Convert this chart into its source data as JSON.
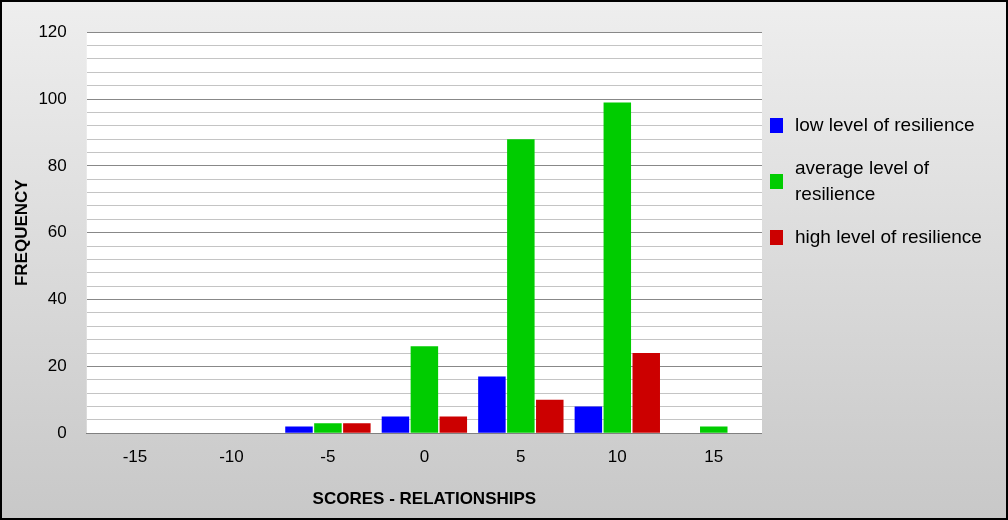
{
  "chart_data": {
    "type": "bar",
    "xlabel": "SCORES - RELATIONSHIPS",
    "ylabel": "FREQUENCY",
    "categories": [
      "-15",
      "-10",
      "-5",
      "0",
      "5",
      "10",
      "15"
    ],
    "series": [
      {
        "name": "low level of resilience",
        "color": "#0000ff",
        "values": [
          null,
          null,
          2,
          5,
          17,
          8,
          null
        ]
      },
      {
        "name": "average level of resilience",
        "color": "#00cc00",
        "values": [
          null,
          null,
          3,
          26,
          88,
          99,
          2
        ]
      },
      {
        "name": "high level of resilience",
        "color": "#cc0000",
        "values": [
          null,
          null,
          3,
          5,
          10,
          24,
          null
        ]
      }
    ],
    "ylim": [
      0,
      120
    ],
    "yticks": [
      0,
      {
        "value": 4,
        "label": null
      },
      {
        "value": 8,
        "label": null
      },
      {
        "value": 12,
        "label": null
      },
      {
        "value": 16,
        "label": null
      },
      20,
      {
        "value": 24,
        "label": null
      },
      {
        "value": 28,
        "label": null
      },
      {
        "value": 32,
        "label": null
      },
      {
        "value": 36,
        "label": null
      },
      40,
      {
        "value": 44,
        "label": null
      },
      {
        "value": 48,
        "label": null
      },
      {
        "value": 52,
        "label": null
      },
      {
        "value": 56,
        "label": null
      },
      60,
      {
        "value": 64,
        "label": null
      },
      {
        "value": 68,
        "label": null
      },
      {
        "value": 72,
        "label": null
      },
      {
        "value": 76,
        "label": null
      },
      80,
      {
        "value": 84,
        "label": null
      },
      {
        "value": 88,
        "label": null
      },
      {
        "value": 92,
        "label": null
      },
      {
        "value": 96,
        "label": null
      },
      100,
      {
        "value": 104,
        "label": null
      },
      {
        "value": 108,
        "label": null
      },
      {
        "value": 112,
        "label": null
      },
      {
        "value": 116,
        "label": null
      },
      120
    ],
    "grid": "y",
    "legend": "right"
  }
}
